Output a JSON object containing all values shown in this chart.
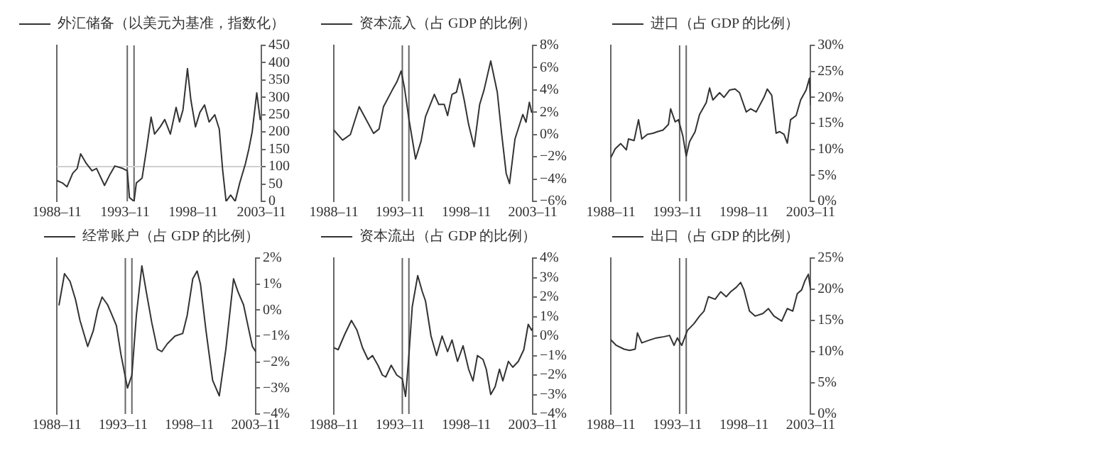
{
  "chart_data": [
    {
      "type": "line",
      "legend": "top",
      "grid": false,
      "xlim": [
        "1988-11",
        "2003-11"
      ],
      "xticks": [
        {
          "value": "1988-11",
          "label": "1988–11"
        },
        {
          "value": "1993-11",
          "label": "1993–11"
        },
        {
          "value": "1998-11",
          "label": "1998–11"
        },
        {
          "value": "2003-11",
          "label": "2003–11"
        }
      ],
      "ylim": [
        0,
        450
      ],
      "yticks": [
        0,
        50,
        100,
        150,
        200,
        250,
        300,
        350,
        400,
        450
      ],
      "ref_lines": [
        {
          "axis": "x",
          "value": "1994-01",
          "color": "#666666"
        },
        {
          "axis": "x",
          "value": "1994-07",
          "color": "#666666"
        },
        {
          "axis": "y",
          "value": 100,
          "color": "#d0d0d0"
        }
      ],
      "x": [
        "1988-11",
        "1989-04",
        "1989-08",
        "1990-01",
        "1990-05",
        "1990-08",
        "1991-01",
        "1991-06",
        "1991-10",
        "1992-05",
        "1992-10",
        "1993-02",
        "1993-09",
        "1994-01",
        "1994-03",
        "1994-07",
        "1994-09",
        "1995-02",
        "1995-06",
        "1995-10",
        "1996-01",
        "1996-06",
        "1996-10",
        "1997-03",
        "1997-08",
        "1997-11",
        "1998-02",
        "1998-06",
        "1998-09",
        "1999-01",
        "1999-05",
        "1999-09",
        "2000-01",
        "2000-06",
        "2000-10",
        "2001-01",
        "2001-04",
        "2001-08",
        "2001-12",
        "2002-04",
        "2002-09",
        "2002-12",
        "2003-03",
        "2003-07",
        "2003-10"
      ],
      "series": [
        {
          "name": "外汇储备（以美元为基准，指数化）",
          "color": "#333333",
          "values": [
            60,
            53,
            42,
            81,
            95,
            137,
            109,
            88,
            95,
            46,
            79,
            102,
            95,
            88,
            11,
            0,
            53,
            67,
            151,
            243,
            194,
            215,
            236,
            194,
            271,
            229,
            264,
            383,
            292,
            215,
            257,
            278,
            229,
            250,
            208,
            88,
            0,
            18,
            0,
            53,
            109,
            151,
            201,
            313,
            236
          ]
        }
      ]
    },
    {
      "type": "line",
      "legend": "top",
      "grid": false,
      "xlim": [
        "1988-11",
        "2003-11"
      ],
      "xticks": [
        {
          "value": "1988-11",
          "label": "1988–11"
        },
        {
          "value": "1993-11",
          "label": "1993–11"
        },
        {
          "value": "1998-11",
          "label": "1998–11"
        },
        {
          "value": "2003-11",
          "label": "2003–11"
        }
      ],
      "ylim": [
        -6,
        8
      ],
      "yticks": [
        {
          "value": -6,
          "label": "−6%"
        },
        {
          "value": -4,
          "label": "−4%"
        },
        {
          "value": -2,
          "label": "−2%"
        },
        {
          "value": 0,
          "label": "0%"
        },
        {
          "value": 2,
          "label": "2%"
        },
        {
          "value": 4,
          "label": "4%"
        },
        {
          "value": 6,
          "label": "6%"
        },
        {
          "value": 8,
          "label": "8%"
        }
      ],
      "ref_lines": [
        {
          "axis": "x",
          "value": "1994-01",
          "color": "#666666"
        },
        {
          "axis": "x",
          "value": "1994-07",
          "color": "#666666"
        }
      ],
      "x": [
        "1988-11",
        "1989-07",
        "1990-02",
        "1990-10",
        "1991-04",
        "1991-11",
        "1992-04",
        "1992-08",
        "1993-04",
        "1993-08",
        "1993-12",
        "1994-03",
        "1994-07",
        "1995-01",
        "1995-06",
        "1995-10",
        "1996-06",
        "1996-10",
        "1997-03",
        "1997-06",
        "1997-10",
        "1998-02",
        "1998-05",
        "1998-09",
        "1999-01",
        "1999-06",
        "1999-11",
        "2000-03",
        "2000-09",
        "2001-03",
        "2001-07",
        "2001-11",
        "2002-02",
        "2002-07",
        "2003-02",
        "2003-05",
        "2003-08",
        "2003-10"
      ],
      "series": [
        {
          "name": "资本流入（占 GDP 的比例）",
          "color": "#333333",
          "values": [
            0.4,
            -0.5,
            0,
            2.5,
            1.4,
            0.1,
            0.5,
            2.5,
            4.0,
            4.7,
            5.7,
            4.2,
            1.4,
            -2.2,
            -0.6,
            1.6,
            3.6,
            2.7,
            2.7,
            1.7,
            3.6,
            3.8,
            5.0,
            3.1,
            0.9,
            -1.1,
            2.7,
            4.0,
            6.6,
            3.8,
            0,
            -3.5,
            -4.4,
            -0.4,
            1.8,
            1.1,
            2.9,
            2.0
          ]
        }
      ]
    },
    {
      "type": "line",
      "legend": "top",
      "grid": false,
      "xlim": [
        "1988-11",
        "2003-11"
      ],
      "xticks": [
        {
          "value": "1988-11",
          "label": "1988–11"
        },
        {
          "value": "1993-11",
          "label": "1993–11"
        },
        {
          "value": "1998-11",
          "label": "1998–11"
        },
        {
          "value": "2003-11",
          "label": "2003–11"
        }
      ],
      "ylim": [
        0,
        30
      ],
      "yticks": [
        {
          "value": 0,
          "label": "0%"
        },
        {
          "value": 5,
          "label": "5%"
        },
        {
          "value": 10,
          "label": "10%"
        },
        {
          "value": 15,
          "label": "15%"
        },
        {
          "value": 20,
          "label": "20%"
        },
        {
          "value": 25,
          "label": "25%"
        },
        {
          "value": 30,
          "label": "30%"
        }
      ],
      "ref_lines": [
        {
          "axis": "x",
          "value": "1994-01",
          "color": "#666666"
        },
        {
          "axis": "x",
          "value": "1994-07",
          "color": "#666666"
        }
      ],
      "x": [
        "1988-11",
        "1989-03",
        "1989-08",
        "1990-01",
        "1990-03",
        "1990-08",
        "1990-12",
        "1991-03",
        "1991-08",
        "1992-01",
        "1992-05",
        "1992-10",
        "1993-03",
        "1993-05",
        "1993-09",
        "1993-12",
        "1994-04",
        "1994-07",
        "1994-10",
        "1995-03",
        "1995-07",
        "1996-01",
        "1996-04",
        "1996-07",
        "1997-01",
        "1997-05",
        "1997-10",
        "1998-03",
        "1998-07",
        "1999-01",
        "1999-05",
        "1999-10",
        "2000-05",
        "2000-08",
        "2000-12",
        "2001-04",
        "2001-07",
        "2001-11",
        "2002-02",
        "2002-05",
        "2002-10",
        "2003-02",
        "2003-07",
        "2003-10",
        "2003-11"
      ],
      "series": [
        {
          "name": "进口（占 GDP 的比例）",
          "color": "#333333",
          "values": [
            8.4,
            10.1,
            11.1,
            9.9,
            12,
            11.7,
            15.7,
            12,
            12.9,
            13.1,
            13.4,
            13.7,
            14.8,
            17.8,
            15.3,
            15.7,
            12.5,
            8.7,
            11.5,
            13.4,
            16.7,
            19,
            21.8,
            19.5,
            20.9,
            20,
            21.4,
            21.6,
            20.9,
            17.2,
            17.8,
            17.2,
            20,
            21.6,
            20.4,
            13.1,
            13.4,
            12.9,
            11.2,
            15.7,
            16.5,
            19.5,
            21.4,
            23.7,
            18.6
          ]
        }
      ]
    },
    {
      "type": "line",
      "legend": "top",
      "grid": false,
      "xlim": [
        "1988-11",
        "2003-11"
      ],
      "xticks": [
        {
          "value": "1988-11",
          "label": "1988–11"
        },
        {
          "value": "1993-11",
          "label": "1993–11"
        },
        {
          "value": "1998-11",
          "label": "1998–11"
        },
        {
          "value": "2003-11",
          "label": "2003–11"
        }
      ],
      "ylim": [
        -4,
        2
      ],
      "yticks": [
        {
          "value": -4,
          "label": "−4%"
        },
        {
          "value": -3,
          "label": "−3%"
        },
        {
          "value": -2,
          "label": "−2%"
        },
        {
          "value": -1,
          "label": "−1%"
        },
        {
          "value": 0,
          "label": "0%"
        },
        {
          "value": 1,
          "label": "1%"
        },
        {
          "value": 2,
          "label": "2%"
        }
      ],
      "ref_lines": [
        {
          "axis": "x",
          "value": "1994-01",
          "color": "#666666"
        },
        {
          "axis": "x",
          "value": "1994-07",
          "color": "#666666"
        }
      ],
      "x": [
        "1989-01",
        "1989-06",
        "1989-11",
        "1990-04",
        "1990-08",
        "1991-03",
        "1991-08",
        "1991-12",
        "1992-04",
        "1992-09",
        "1993-01",
        "1993-05",
        "1993-09",
        "1994-03",
        "1994-07",
        "1994-11",
        "1995-04",
        "1995-08",
        "1996-01",
        "1996-06",
        "1996-10",
        "1997-03",
        "1997-10",
        "1998-05",
        "1998-09",
        "1999-02",
        "1999-06",
        "1999-09",
        "2000-02",
        "2000-08",
        "2001-02",
        "2001-08",
        "2002-03",
        "2002-07",
        "2002-12",
        "2003-05",
        "2003-08",
        "2003-11"
      ],
      "series": [
        {
          "name": "经常账户（占 GDP 的比例）",
          "color": "#333333",
          "values": [
            0.2,
            1.4,
            1.1,
            0.4,
            -0.4,
            -1.4,
            -0.8,
            0,
            0.5,
            0.2,
            -0.2,
            -0.6,
            -1.7,
            -3.0,
            -2.5,
            -0.2,
            1.7,
            0.7,
            -0.5,
            -1.5,
            -1.6,
            -1.3,
            -1.0,
            -0.9,
            -0.2,
            1.2,
            1.5,
            1.0,
            -0.8,
            -2.7,
            -3.3,
            -1.5,
            1.2,
            0.7,
            0.2,
            -0.8,
            -1.4,
            -1.6
          ]
        }
      ]
    },
    {
      "type": "line",
      "legend": "top",
      "grid": false,
      "xlim": [
        "1988-11",
        "2003-11"
      ],
      "xticks": [
        {
          "value": "1988-11",
          "label": "1988–11"
        },
        {
          "value": "1993-11",
          "label": "1993–11"
        },
        {
          "value": "1998-11",
          "label": "1998–11"
        },
        {
          "value": "2003-11",
          "label": "2003–11"
        }
      ],
      "ylim": [
        -4,
        4
      ],
      "yticks": [
        {
          "value": -4,
          "label": "−4%"
        },
        {
          "value": -3,
          "label": "−3%"
        },
        {
          "value": -2,
          "label": "−2%"
        },
        {
          "value": -1,
          "label": "−1%"
        },
        {
          "value": 0,
          "label": "0%"
        },
        {
          "value": 1,
          "label": "1%"
        },
        {
          "value": 2,
          "label": "2%"
        },
        {
          "value": 3,
          "label": "3%"
        },
        {
          "value": 4,
          "label": "4%"
        }
      ],
      "ref_lines": [
        {
          "axis": "x",
          "value": "1994-01",
          "color": "#666666"
        },
        {
          "axis": "x",
          "value": "1994-07",
          "color": "#666666"
        }
      ],
      "x": [
        "1988-11",
        "1989-03",
        "1989-09",
        "1990-03",
        "1990-08",
        "1991-01",
        "1991-06",
        "1991-10",
        "1992-03",
        "1992-07",
        "1992-10",
        "1993-03",
        "1993-08",
        "1994-01",
        "1994-04",
        "1994-07",
        "1994-10",
        "1995-03",
        "1995-07",
        "1995-10",
        "1996-03",
        "1996-08",
        "1997-01",
        "1997-06",
        "1997-10",
        "1998-03",
        "1998-08",
        "1999-01",
        "1999-05",
        "1999-09",
        "2000-02",
        "2000-05",
        "2000-09",
        "2001-01",
        "2001-05",
        "2001-08",
        "2002-01",
        "2002-05",
        "2002-10",
        "2003-03",
        "2003-07",
        "2003-10",
        "2003-11"
      ],
      "series": [
        {
          "name": "资本流出（占 GDP 的比例）",
          "color": "#333333",
          "values": [
            -0.6,
            -0.7,
            0.1,
            0.8,
            0.3,
            -0.6,
            -1.2,
            -1.0,
            -1.5,
            -2.0,
            -2.1,
            -1.5,
            -2.0,
            -2.2,
            -3.1,
            -1.0,
            1.5,
            3.1,
            2.3,
            1.8,
            0,
            -1.0,
            0,
            -0.8,
            -0.2,
            -1.3,
            -0.5,
            -1.7,
            -2.3,
            -1.0,
            -1.2,
            -1.7,
            -3.0,
            -2.6,
            -1.7,
            -2.3,
            -1.3,
            -1.6,
            -1.3,
            -0.7,
            0.6,
            0.3,
            0.4
          ]
        }
      ]
    },
    {
      "type": "line",
      "legend": "top",
      "grid": false,
      "xlim": [
        "1988-11",
        "2003-11"
      ],
      "xticks": [
        {
          "value": "1988-11",
          "label": "1988–11"
        },
        {
          "value": "1993-11",
          "label": "1993–11"
        },
        {
          "value": "1998-11",
          "label": "1998–11"
        },
        {
          "value": "2003-11",
          "label": "2003–11"
        }
      ],
      "ylim": [
        0,
        25
      ],
      "yticks": [
        {
          "value": 0,
          "label": "0%"
        },
        {
          "value": 5,
          "label": "5%"
        },
        {
          "value": 10,
          "label": "10%"
        },
        {
          "value": 15,
          "label": "15%"
        },
        {
          "value": 20,
          "label": "20%"
        },
        {
          "value": 25,
          "label": "25%"
        }
      ],
      "ref_lines": [
        {
          "axis": "x",
          "value": "1994-01",
          "color": "#666666"
        },
        {
          "axis": "x",
          "value": "1994-07",
          "color": "#666666"
        }
      ],
      "x": [
        "1988-11",
        "1989-04",
        "1989-11",
        "1990-04",
        "1990-09",
        "1990-11",
        "1991-03",
        "1991-09",
        "1992-04",
        "1992-11",
        "1993-04",
        "1993-08",
        "1993-11",
        "1994-03",
        "1994-08",
        "1995-02",
        "1995-07",
        "1995-11",
        "1996-03",
        "1996-09",
        "1997-02",
        "1997-07",
        "1997-11",
        "1998-04",
        "1998-08",
        "1998-11",
        "1999-04",
        "1999-09",
        "2000-04",
        "2000-09",
        "2001-02",
        "2001-09",
        "2002-02",
        "2002-07",
        "2002-11",
        "2003-03",
        "2003-06",
        "2003-09",
        "2003-11"
      ],
      "series": [
        {
          "name": "出口（占 GDP 的比例）",
          "color": "#333333",
          "values": [
            11.9,
            11.0,
            10.4,
            10.2,
            10.4,
            13.0,
            11.4,
            11.8,
            12.2,
            12.4,
            12.6,
            11.0,
            12.2,
            11.0,
            13.4,
            14.5,
            15.7,
            16.5,
            18.8,
            18.4,
            19.6,
            18.8,
            19.6,
            20.3,
            21.1,
            19.9,
            16.5,
            15.7,
            16.1,
            16.9,
            15.7,
            14.9,
            16.9,
            16.5,
            19.3,
            19.9,
            21.4,
            22.4,
            19.9
          ]
        }
      ]
    }
  ]
}
